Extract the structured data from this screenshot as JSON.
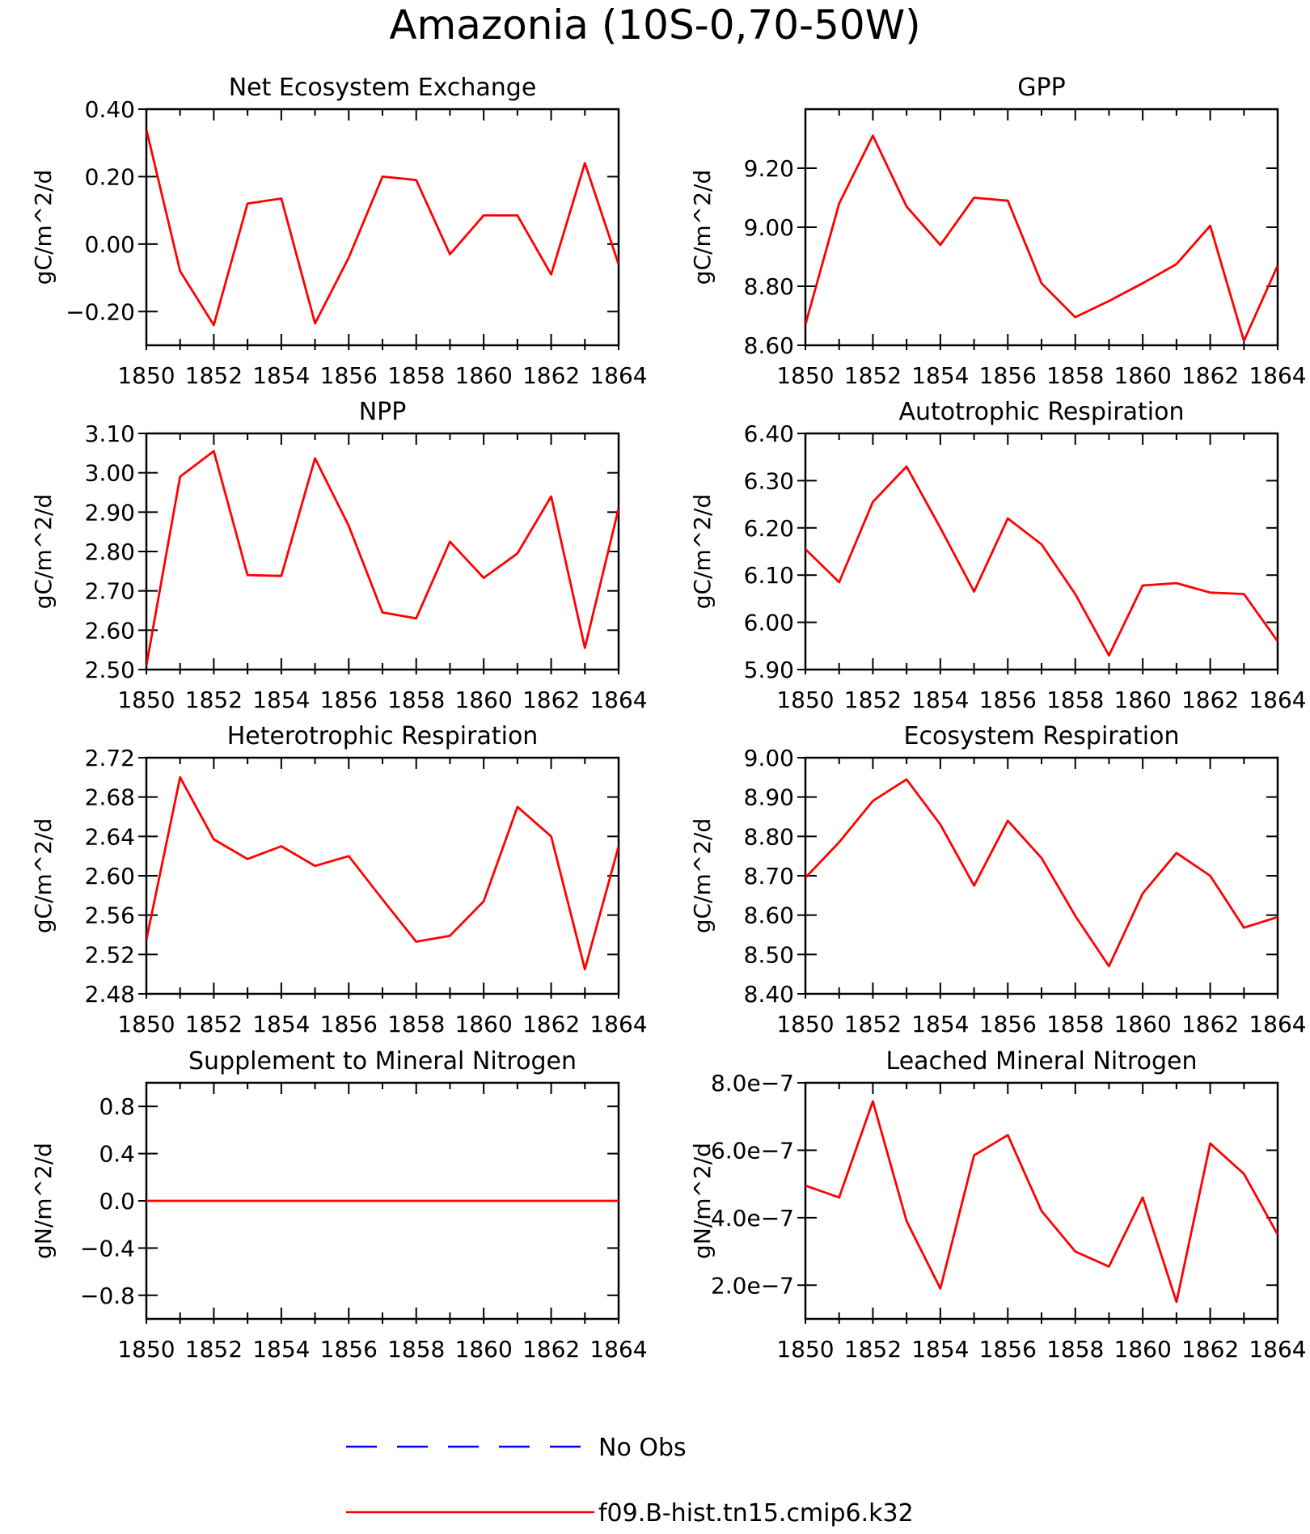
{
  "title": "Amazonia (10S-0,70-50W)",
  "colors": {
    "model": "#ff0000",
    "obs": "#0000ff",
    "axis": "#000000"
  },
  "legend": {
    "items": [
      {
        "label": "No Obs",
        "style": "dashed",
        "color": "#0000ff"
      },
      {
        "label": "f09.B-hist.tn15.cmip6.k32",
        "style": "solid",
        "color": "#ff0000"
      }
    ]
  },
  "chart_data": [
    {
      "type": "line",
      "title": "Net Ecosystem Exchange",
      "ylabel": "gC/m^2/d",
      "xlabel": "",
      "xlim": [
        1850,
        1864
      ],
      "ylim": [
        -0.3,
        0.4
      ],
      "xticks": [
        1850,
        1852,
        1854,
        1856,
        1858,
        1860,
        1862,
        1864
      ],
      "yticks": [
        -0.2,
        0.0,
        0.2,
        0.4
      ],
      "ytick_labels": [
        "-0.20",
        "0.00",
        "0.20",
        "0.40"
      ],
      "x": [
        1850,
        1851,
        1852,
        1853,
        1854,
        1855,
        1856,
        1857,
        1858,
        1859,
        1860,
        1861,
        1862,
        1863,
        1864
      ],
      "series": [
        {
          "name": "f09.B-hist.tn15.cmip6.k32",
          "values": [
            0.34,
            -0.08,
            -0.24,
            0.12,
            0.135,
            -0.235,
            -0.04,
            0.2,
            0.19,
            -0.03,
            0.085,
            0.085,
            -0.09,
            0.24,
            -0.06
          ]
        }
      ]
    },
    {
      "type": "line",
      "title": "GPP",
      "ylabel": "gC/m^2/d",
      "xlabel": "",
      "xlim": [
        1850,
        1864
      ],
      "ylim": [
        8.6,
        9.4
      ],
      "xticks": [
        1850,
        1852,
        1854,
        1856,
        1858,
        1860,
        1862,
        1864
      ],
      "yticks": [
        8.6,
        8.8,
        9.0,
        9.2
      ],
      "ytick_labels": [
        "8.60",
        "8.80",
        "9.00",
        "9.20"
      ],
      "x": [
        1850,
        1851,
        1852,
        1853,
        1854,
        1855,
        1856,
        1857,
        1858,
        1859,
        1860,
        1861,
        1862,
        1863,
        1864
      ],
      "series": [
        {
          "name": "f09.B-hist.tn15.cmip6.k32",
          "values": [
            8.67,
            9.08,
            9.31,
            9.07,
            8.94,
            9.1,
            9.09,
            8.81,
            8.695,
            8.75,
            8.81,
            8.875,
            9.005,
            8.615,
            8.87
          ]
        }
      ]
    },
    {
      "type": "line",
      "title": "NPP",
      "ylabel": "gC/m^2/d",
      "xlabel": "",
      "xlim": [
        1850,
        1864
      ],
      "ylim": [
        2.5,
        3.1
      ],
      "xticks": [
        1850,
        1852,
        1854,
        1856,
        1858,
        1860,
        1862,
        1864
      ],
      "yticks": [
        2.5,
        2.6,
        2.7,
        2.8,
        2.9,
        3.0,
        3.1
      ],
      "ytick_labels": [
        "2.50",
        "2.60",
        "2.70",
        "2.80",
        "2.90",
        "3.00",
        "3.10"
      ],
      "x": [
        1850,
        1851,
        1852,
        1853,
        1854,
        1855,
        1856,
        1857,
        1858,
        1859,
        1860,
        1861,
        1862,
        1863,
        1864
      ],
      "series": [
        {
          "name": "f09.B-hist.tn15.cmip6.k32",
          "values": [
            2.51,
            2.99,
            3.055,
            2.74,
            2.738,
            3.037,
            2.865,
            2.645,
            2.63,
            2.825,
            2.733,
            2.795,
            2.94,
            2.555,
            2.91
          ]
        }
      ]
    },
    {
      "type": "line",
      "title": "Autotrophic Respiration",
      "ylabel": "gC/m^2/d",
      "xlabel": "",
      "xlim": [
        1850,
        1864
      ],
      "ylim": [
        5.9,
        6.4
      ],
      "xticks": [
        1850,
        1852,
        1854,
        1856,
        1858,
        1860,
        1862,
        1864
      ],
      "yticks": [
        5.9,
        6.0,
        6.1,
        6.2,
        6.3,
        6.4
      ],
      "ytick_labels": [
        "5.90",
        "6.00",
        "6.10",
        "6.20",
        "6.30",
        "6.40"
      ],
      "x": [
        1850,
        1851,
        1852,
        1853,
        1854,
        1855,
        1856,
        1857,
        1858,
        1859,
        1860,
        1861,
        1862,
        1863,
        1864
      ],
      "series": [
        {
          "name": "f09.B-hist.tn15.cmip6.k32",
          "values": [
            6.155,
            6.085,
            6.255,
            6.33,
            6.2,
            6.065,
            6.22,
            6.165,
            6.06,
            5.93,
            6.078,
            6.083,
            6.063,
            6.06,
            5.96
          ]
        }
      ]
    },
    {
      "type": "line",
      "title": "Heterotrophic Respiration",
      "ylabel": "gC/m^2/d",
      "xlabel": "",
      "xlim": [
        1850,
        1864
      ],
      "ylim": [
        2.48,
        2.72
      ],
      "xticks": [
        1850,
        1852,
        1854,
        1856,
        1858,
        1860,
        1862,
        1864
      ],
      "yticks": [
        2.48,
        2.52,
        2.56,
        2.6,
        2.64,
        2.68,
        2.72
      ],
      "ytick_labels": [
        "2.48",
        "2.52",
        "2.56",
        "2.60",
        "2.64",
        "2.68",
        "2.72"
      ],
      "x": [
        1850,
        1851,
        1852,
        1853,
        1854,
        1855,
        1856,
        1857,
        1858,
        1859,
        1860,
        1861,
        1862,
        1863,
        1864
      ],
      "series": [
        {
          "name": "f09.B-hist.tn15.cmip6.k32",
          "values": [
            2.535,
            2.7,
            2.637,
            2.617,
            2.63,
            2.61,
            2.62,
            2.576,
            2.533,
            2.539,
            2.574,
            2.67,
            2.64,
            2.505,
            2.63
          ]
        }
      ]
    },
    {
      "type": "line",
      "title": "Ecosystem Respiration",
      "ylabel": "gC/m^2/d",
      "xlabel": "",
      "xlim": [
        1850,
        1864
      ],
      "ylim": [
        8.4,
        9.0
      ],
      "xticks": [
        1850,
        1852,
        1854,
        1856,
        1858,
        1860,
        1862,
        1864
      ],
      "yticks": [
        8.4,
        8.5,
        8.6,
        8.7,
        8.8,
        8.9,
        9.0
      ],
      "ytick_labels": [
        "8.40",
        "8.50",
        "8.60",
        "8.70",
        "8.80",
        "8.90",
        "9.00"
      ],
      "x": [
        1850,
        1851,
        1852,
        1853,
        1854,
        1855,
        1856,
        1857,
        1858,
        1859,
        1860,
        1861,
        1862,
        1863,
        1864
      ],
      "series": [
        {
          "name": "f09.B-hist.tn15.cmip6.k32",
          "values": [
            8.695,
            8.785,
            8.89,
            8.945,
            8.83,
            8.675,
            8.84,
            8.745,
            8.598,
            8.47,
            8.655,
            8.758,
            8.7,
            8.568,
            8.595
          ]
        }
      ]
    },
    {
      "type": "line",
      "title": "Supplement to Mineral Nitrogen",
      "ylabel": "gN/m^2/d",
      "xlabel": "",
      "xlim": [
        1850,
        1864
      ],
      "ylim": [
        -1.0,
        1.0
      ],
      "xticks": [
        1850,
        1852,
        1854,
        1856,
        1858,
        1860,
        1862,
        1864
      ],
      "yticks": [
        -0.8,
        -0.4,
        0.0,
        0.4,
        0.8
      ],
      "ytick_labels": [
        "-0.8",
        "-0.4",
        "0.0",
        "0.4",
        "0.8"
      ],
      "x": [
        1850,
        1851,
        1852,
        1853,
        1854,
        1855,
        1856,
        1857,
        1858,
        1859,
        1860,
        1861,
        1862,
        1863,
        1864
      ],
      "series": [
        {
          "name": "f09.B-hist.tn15.cmip6.k32",
          "values": [
            0,
            0,
            0,
            0,
            0,
            0,
            0,
            0,
            0,
            0,
            0,
            0,
            0,
            0,
            0
          ]
        }
      ]
    },
    {
      "type": "line",
      "title": "Leached Mineral Nitrogen",
      "ylabel": "gN/m^2/d",
      "xlabel": "",
      "xlim": [
        1850,
        1864
      ],
      "ylim": [
        1e-07,
        8e-07
      ],
      "xticks": [
        1850,
        1852,
        1854,
        1856,
        1858,
        1860,
        1862,
        1864
      ],
      "yticks": [
        2e-07,
        4e-07,
        6e-07,
        8e-07
      ],
      "ytick_labels": [
        "2.0e-7",
        "4.0e-7",
        "6.0e-7",
        "8.0e-7"
      ],
      "x": [
        1850,
        1851,
        1852,
        1853,
        1854,
        1855,
        1856,
        1857,
        1858,
        1859,
        1860,
        1861,
        1862,
        1863,
        1864
      ],
      "series": [
        {
          "name": "f09.B-hist.tn15.cmip6.k32",
          "values": [
            4.95e-07,
            4.6e-07,
            7.45e-07,
            3.9e-07,
            1.9e-07,
            5.85e-07,
            6.45e-07,
            4.2e-07,
            3e-07,
            2.55e-07,
            4.6e-07,
            1.5e-07,
            6.2e-07,
            5.3e-07,
            3.5e-07
          ]
        }
      ]
    }
  ]
}
